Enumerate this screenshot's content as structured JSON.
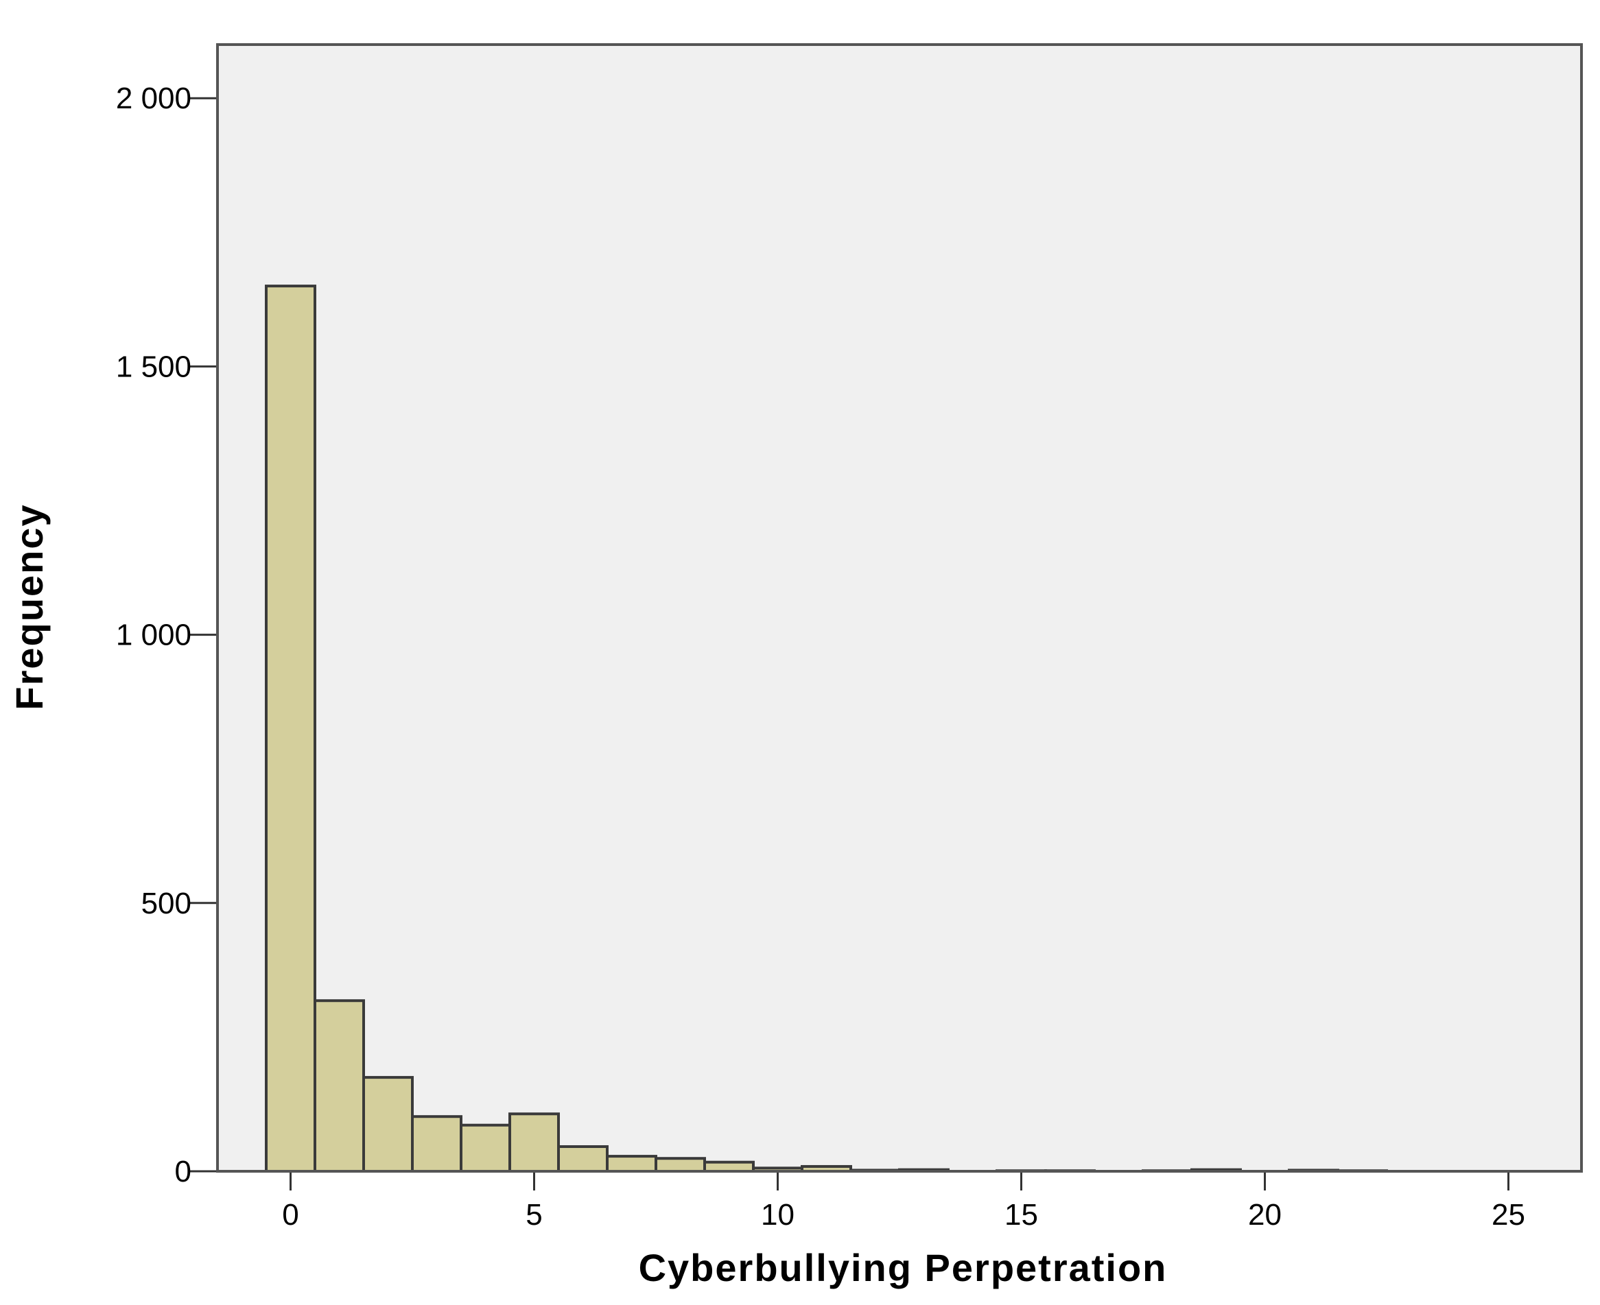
{
  "chart_data": {
    "type": "bar",
    "title": "",
    "xlabel": "Cyberbullying Perpetration",
    "ylabel": "Frequency",
    "xlim": [
      -1.5,
      26.5
    ],
    "ylim": [
      0,
      2100
    ],
    "x_ticks": [
      0,
      5,
      10,
      15,
      20,
      25
    ],
    "x_tick_labels": [
      "0",
      "5",
      "10",
      "15",
      "20",
      "25"
    ],
    "y_ticks": [
      0,
      500,
      1000,
      1500,
      2000
    ],
    "y_tick_labels": [
      "0",
      "500",
      "1 000",
      "1 500",
      "2 000"
    ],
    "grid": false,
    "bin_width": 1,
    "bins": [
      {
        "x": 0,
        "value": 1650
      },
      {
        "x": 1,
        "value": 318
      },
      {
        "x": 2,
        "value": 175
      },
      {
        "x": 3,
        "value": 102
      },
      {
        "x": 4,
        "value": 86
      },
      {
        "x": 5,
        "value": 107
      },
      {
        "x": 6,
        "value": 46
      },
      {
        "x": 7,
        "value": 28
      },
      {
        "x": 8,
        "value": 24
      },
      {
        "x": 9,
        "value": 17
      },
      {
        "x": 10,
        "value": 6
      },
      {
        "x": 11,
        "value": 9
      },
      {
        "x": 12,
        "value": 2
      },
      {
        "x": 13,
        "value": 3
      },
      {
        "x": 15,
        "value": 1
      },
      {
        "x": 16,
        "value": 1
      },
      {
        "x": 18,
        "value": 1
      },
      {
        "x": 19,
        "value": 3
      },
      {
        "x": 21,
        "value": 2
      },
      {
        "x": 22,
        "value": 1
      }
    ],
    "colors": {
      "plot_background": "#F0F0F0",
      "bar_fill": "#D4CF9C",
      "bar_stroke": "#3A3A3A",
      "frame": "#555555"
    }
  }
}
